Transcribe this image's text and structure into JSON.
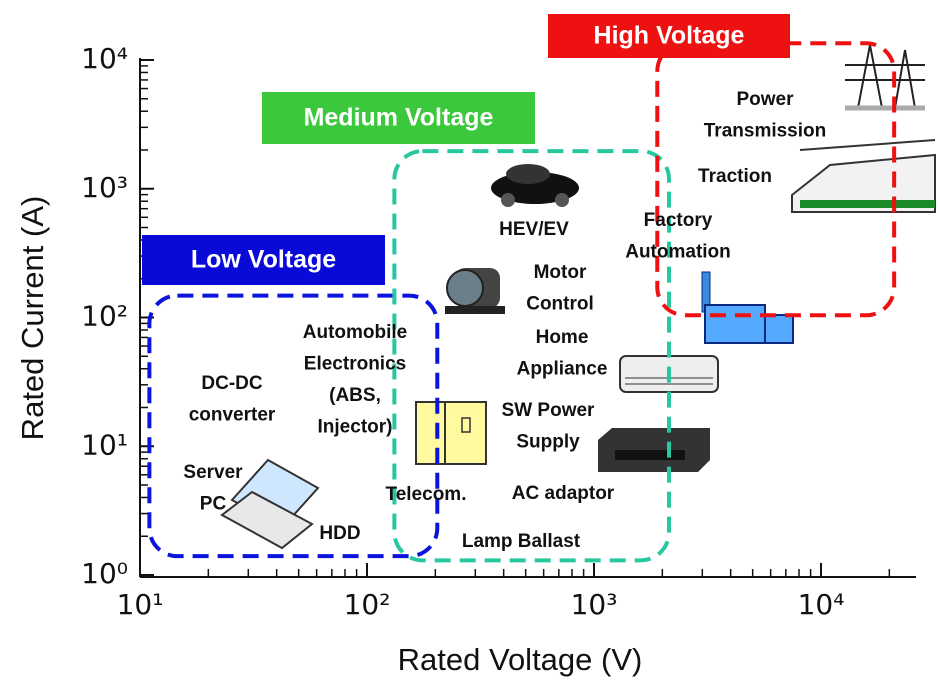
{
  "chart_data": {
    "type": "region",
    "x_label": "Rated Voltage (V)",
    "y_label": "Rated Current (A)",
    "log_x": true,
    "log_y": true,
    "xlim": [
      10,
      26000
    ],
    "ylim": [
      1,
      10000
    ],
    "xticks": [
      {
        "value": 10,
        "label": "10¹"
      },
      {
        "value": 100,
        "label": "10²"
      },
      {
        "value": 1000,
        "label": "10³"
      },
      {
        "value": 10000,
        "label": "10⁴"
      }
    ],
    "yticks": [
      {
        "value": 1,
        "label": "10⁰"
      },
      {
        "value": 10,
        "label": "10¹"
      },
      {
        "value": 100,
        "label": "10²"
      },
      {
        "value": 1000,
        "label": "10³"
      },
      {
        "value": 10000,
        "label": "10⁴"
      }
    ],
    "x_minor_ticks": [
      20,
      30,
      40,
      50,
      60,
      70,
      80,
      90,
      200,
      300,
      400,
      500,
      600,
      700,
      800,
      900,
      2000,
      3000,
      4000,
      5000,
      6000,
      7000,
      8000,
      9000,
      20000
    ],
    "y_minor_ticks": [
      2,
      3,
      4,
      5,
      6,
      7,
      8,
      9,
      20,
      30,
      40,
      50,
      60,
      70,
      80,
      90,
      200,
      300,
      400,
      500,
      600,
      700,
      800,
      900,
      2000,
      3000,
      4000,
      5000,
      6000,
      7000,
      8000,
      9000
    ],
    "regions": [
      {
        "name": "Low Voltage",
        "color": "#0a14dc",
        "xlim": [
          11,
          204
        ],
        "ylim": [
          1.4,
          148
        ]
      },
      {
        "name": "Medium Voltage",
        "color": "#27c8a0",
        "xlim": [
          132,
          2140
        ],
        "ylim": [
          1.3,
          1960
        ]
      },
      {
        "name": "High Voltage",
        "color": "#ee1111",
        "xlim": [
          1900,
          21000
        ],
        "ylim": [
          104,
          13500
        ]
      }
    ],
    "region_label_colors": [
      "#0a0ad8",
      "#3cc83c",
      "#ee1111"
    ],
    "applications": [
      {
        "lines": [
          "DC-DC",
          "converter"
        ]
      },
      {
        "lines": [
          "Server",
          "PC"
        ]
      },
      {
        "lines": [
          "HDD"
        ]
      },
      {
        "lines": [
          "Automobile",
          "Electronics",
          "(ABS,",
          "Injector)"
        ]
      },
      {
        "lines": [
          "Telecom."
        ]
      },
      {
        "lines": [
          "Lamp Ballast"
        ]
      },
      {
        "lines": [
          "HEV/EV"
        ]
      },
      {
        "lines": [
          "Motor",
          "Control"
        ]
      },
      {
        "lines": [
          "Home",
          "Appliance"
        ]
      },
      {
        "lines": [
          "SW Power",
          "Supply"
        ]
      },
      {
        "lines": [
          "AC adaptor"
        ]
      },
      {
        "lines": [
          "Factory",
          "Automation"
        ]
      },
      {
        "lines": [
          "Power",
          "Transmission"
        ]
      },
      {
        "lines": [
          "Traction"
        ]
      }
    ]
  }
}
